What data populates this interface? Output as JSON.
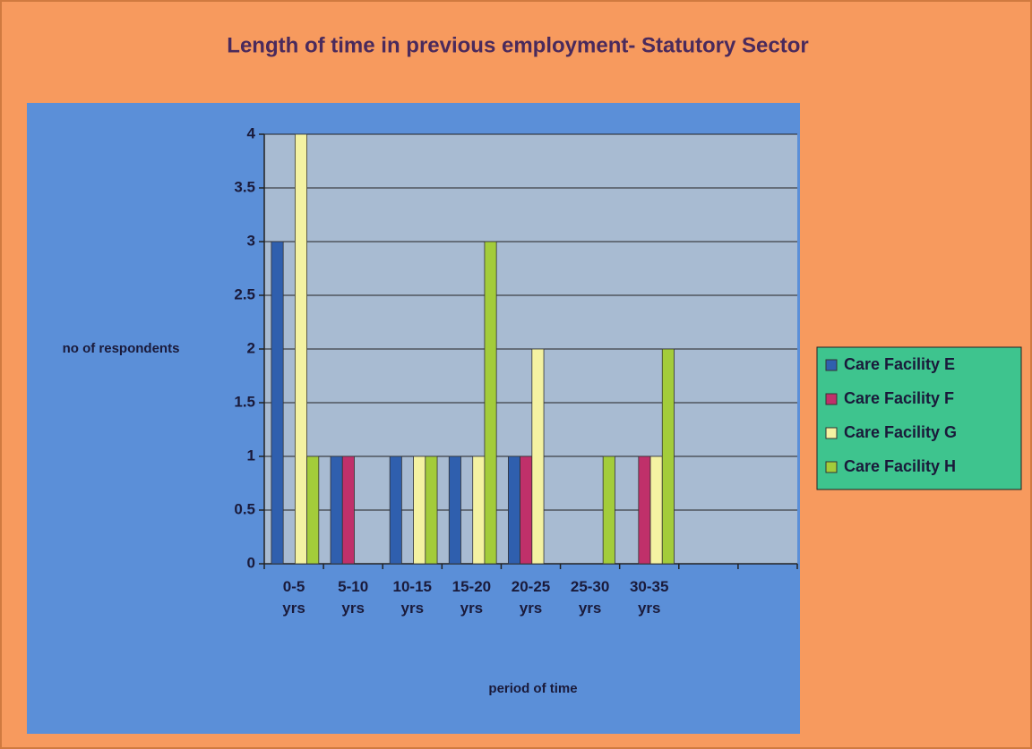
{
  "chart_data": {
    "type": "bar",
    "title": "Length of time in previous employment- Statutory Sector",
    "y_label": "no of respondents",
    "x_label": "period of time",
    "categories": [
      "0-5 yrs",
      "5-10 yrs",
      "10-15 yrs",
      "15-20 yrs",
      "20-25 yrs",
      "25-30 yrs",
      "30-35 yrs",
      null,
      null
    ],
    "series": [
      {
        "name": "Care Facility E",
        "color": "#2f5fae",
        "values": [
          3,
          1,
          1,
          1,
          1,
          0,
          0,
          null,
          null
        ]
      },
      {
        "name": "Care Facility F",
        "color": "#c0306a",
        "values": [
          0,
          1,
          0,
          0,
          1,
          0,
          1,
          null,
          null
        ]
      },
      {
        "name": "Care Facility G",
        "color": "#f4f2a2",
        "values": [
          4,
          0,
          1,
          1,
          2,
          0,
          1,
          null,
          null
        ]
      },
      {
        "name": "Care Facility H",
        "color": "#a3cc3a",
        "values": [
          1,
          0,
          1,
          3,
          0,
          1,
          2,
          null,
          null
        ]
      }
    ],
    "ylim": [
      0,
      4
    ],
    "yticks": [
      0,
      0.5,
      1,
      1.5,
      2,
      2.5,
      3,
      3.5,
      4
    ],
    "grid": true,
    "legend": "right"
  }
}
